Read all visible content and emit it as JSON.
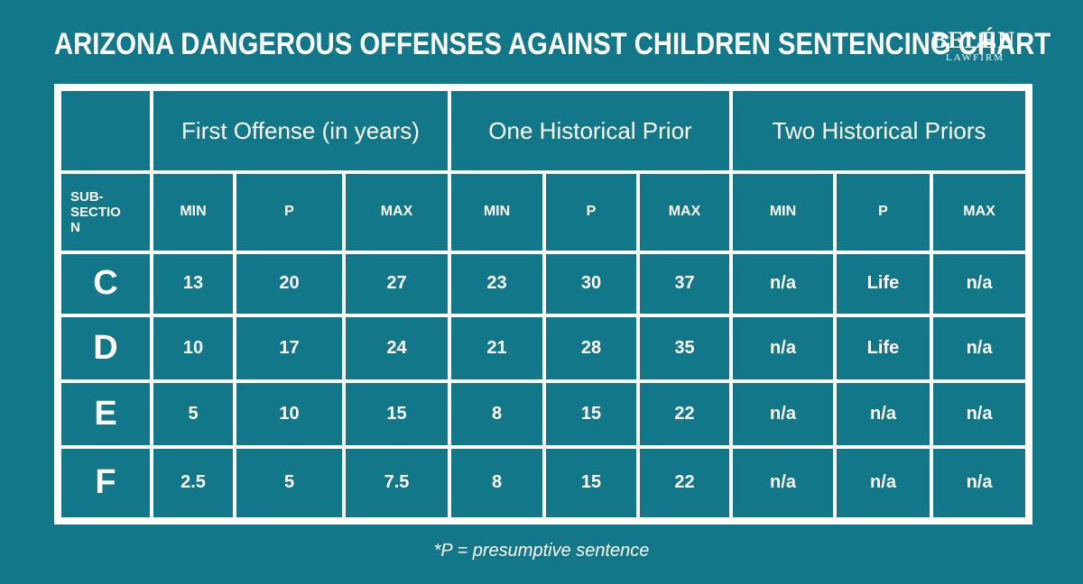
{
  "header": {
    "title": "ARIZONA DANGEROUS OFFENSES AGAINST CHILDREN SENTENCING CHART",
    "logo_name": "BELÉN",
    "logo_sub": "LAWFIRM"
  },
  "table": {
    "groups": [
      "First Offense (in years)",
      "One Historical Prior",
      "Two Historical Priors"
    ],
    "subheaders": [
      "SUB-SECTION",
      "MIN",
      "P",
      "MAX",
      "MIN",
      "P",
      "MAX",
      "MIN",
      "P",
      "MAX"
    ],
    "rows": [
      [
        "C",
        "13",
        "20",
        "27",
        "23",
        "30",
        "37",
        "n/a",
        "Life",
        "n/a"
      ],
      [
        "D",
        "10",
        "17",
        "24",
        "21",
        "28",
        "35",
        "n/a",
        "Life",
        "n/a"
      ],
      [
        "E",
        "5",
        "10",
        "15",
        "8",
        "15",
        "22",
        "n/a",
        "n/a",
        "n/a"
      ],
      [
        "F",
        "2.5",
        "5",
        "7.5",
        "8",
        "15",
        "22",
        "n/a",
        "n/a",
        "n/a"
      ]
    ]
  },
  "footnote": "*P = presumptive sentence"
}
